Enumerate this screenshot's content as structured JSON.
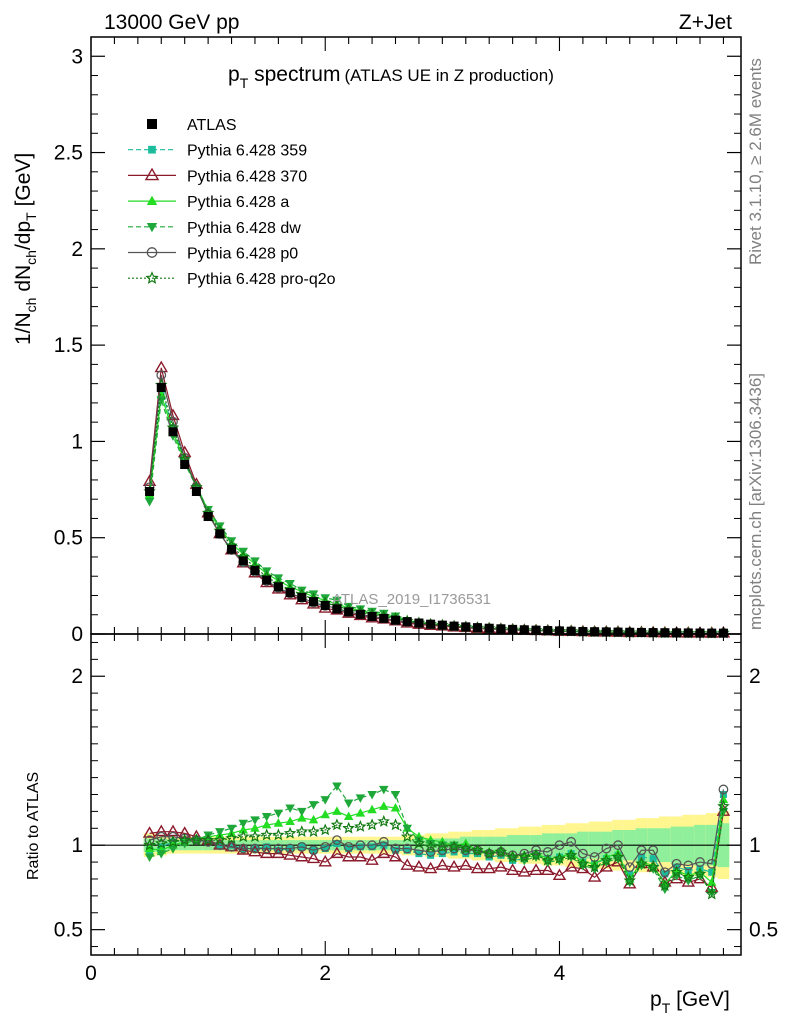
{
  "header": {
    "left": "13000 GeV pp",
    "right": "Z+Jet",
    "title_main": "p",
    "title_sub": "T",
    "title_rest": " spectrum",
    "title_note": "(ATLAS UE in Z production)"
  },
  "side_labels": {
    "rivet": "Rivet 3.1.10, ≥ 2.6M events",
    "mcplots": "mcplots.cern.ch [arXiv:1306.3436]"
  },
  "watermark": "ATLAS_2019_I1736531",
  "axes": {
    "ylabel_main": "1/N",
    "ylabel_ch": "ch",
    "ylabel_dN": " dN",
    "ylabel_ch2": "ch",
    "ylabel_dp": "/dp",
    "ylabel_T": "T",
    "ylabel_unit": " [GeV]",
    "ratio_ylabel": "Ratio to ATLAS",
    "xlabel_p": "p",
    "xlabel_T": "T",
    "xlabel_unit": " [GeV]"
  },
  "legend": [
    {
      "label": "ATLAS",
      "color": "#000000",
      "marker": "square"
    },
    {
      "label": "Pythia 6.428 359",
      "color": "#1abc9c",
      "marker": "small-square",
      "dash": "5,3"
    },
    {
      "label": "Pythia 6.428 370",
      "color": "#8b1a2b",
      "marker": "open-triangle"
    },
    {
      "label": "Pythia 6.428 a",
      "color": "#22dd22",
      "marker": "triangle"
    },
    {
      "label": "Pythia 6.428 dw",
      "color": "#1fa83a",
      "marker": "triangle-down",
      "dash": "5,3"
    },
    {
      "label": "Pythia 6.428 p0",
      "color": "#555555",
      "marker": "open-circle"
    },
    {
      "label": "Pythia 6.428 pro-q2o",
      "color": "#127a12",
      "marker": "open-star",
      "dash": "2,2"
    }
  ],
  "chart_data": {
    "type": "line",
    "x": [
      0.5,
      0.6,
      0.7,
      0.8,
      0.9,
      1.0,
      1.1,
      1.2,
      1.3,
      1.4,
      1.5,
      1.6,
      1.7,
      1.8,
      1.9,
      2.0,
      2.1,
      2.2,
      2.3,
      2.4,
      2.5,
      2.6,
      2.7,
      2.8,
      2.9,
      3.0,
      3.1,
      3.2,
      3.3,
      3.4,
      3.5,
      3.6,
      3.7,
      3.8,
      3.9,
      4.0,
      4.1,
      4.2,
      4.3,
      4.4,
      4.5,
      4.6,
      4.7,
      4.8,
      4.9,
      5.0,
      5.1,
      5.2,
      5.3,
      5.4
    ],
    "atlas": [
      0.74,
      1.28,
      1.05,
      0.88,
      0.74,
      0.61,
      0.52,
      0.44,
      0.38,
      0.33,
      0.28,
      0.245,
      0.215,
      0.19,
      0.168,
      0.148,
      0.13,
      0.115,
      0.102,
      0.091,
      0.081,
      0.072,
      0.064,
      0.057,
      0.051,
      0.046,
      0.041,
      0.037,
      0.033,
      0.03,
      0.027,
      0.024,
      0.022,
      0.02,
      0.018,
      0.016,
      0.0145,
      0.013,
      0.012,
      0.011,
      0.01,
      0.009,
      0.0082,
      0.0075,
      0.0068,
      0.0062,
      0.0056,
      0.0051,
      0.0047,
      0.0043
    ],
    "mc_ratio_level": 0.5,
    "ylim": [
      0,
      3.1
    ],
    "xlim": [
      0,
      5.55
    ],
    "yticks": [
      0,
      0.5,
      1,
      1.5,
      2,
      2.5,
      3
    ],
    "xticks": [
      0,
      2,
      4
    ],
    "ratio": {
      "ylim": [
        0.35,
        2.25
      ],
      "yticks": [
        0.5,
        1,
        2
      ],
      "series": [
        {
          "name": "Pythia 6.428 359",
          "values": [
            0.97,
            0.99,
            1.02,
            1.03,
            1.03,
            1.03,
            1.0,
            1.0,
            0.98,
            0.98,
            0.99,
            0.97,
            0.98,
            0.99,
            0.97,
            0.98,
            1.01,
            0.98,
            0.99,
            0.99,
            1.0,
            0.97,
            0.97,
            0.95,
            0.94,
            0.95,
            0.96,
            0.95,
            0.95,
            0.93,
            0.94,
            0.91,
            0.92,
            0.94,
            0.92,
            0.93,
            0.95,
            0.9,
            0.89,
            0.92,
            0.94,
            0.83,
            0.93,
            0.92,
            0.83,
            0.87,
            0.85,
            0.86,
            0.84,
            1.3
          ]
        },
        {
          "name": "Pythia 6.428 370",
          "values": [
            1.07,
            1.08,
            1.08,
            1.07,
            1.05,
            1.03,
            1.0,
            0.99,
            0.97,
            0.96,
            0.95,
            0.95,
            0.94,
            0.93,
            0.92,
            0.9,
            0.95,
            0.93,
            0.93,
            0.91,
            0.95,
            0.93,
            0.88,
            0.87,
            0.86,
            0.88,
            0.87,
            0.88,
            0.86,
            0.86,
            0.87,
            0.85,
            0.84,
            0.85,
            0.85,
            0.82,
            0.87,
            0.86,
            0.81,
            0.87,
            0.9,
            0.77,
            0.89,
            0.87,
            0.78,
            0.8,
            0.78,
            0.8,
            0.75,
            1.2
          ]
        },
        {
          "name": "Pythia 6.428 a",
          "values": [
            0.98,
            0.97,
            1.0,
            1.02,
            1.04,
            1.05,
            1.06,
            1.07,
            1.09,
            1.1,
            1.12,
            1.13,
            1.14,
            1.16,
            1.15,
            1.18,
            1.2,
            1.17,
            1.19,
            1.21,
            1.23,
            1.22,
            1.1,
            1.05,
            1.03,
            1.02,
            1.0,
            1.01,
            0.97,
            0.96,
            0.97,
            0.94,
            0.94,
            0.95,
            0.92,
            0.93,
            0.95,
            0.9,
            0.89,
            0.93,
            0.95,
            0.8,
            0.9,
            0.88,
            0.77,
            0.85,
            0.82,
            0.84,
            0.78,
            1.27
          ]
        },
        {
          "name": "Pythia 6.428 dw",
          "values": [
            0.93,
            0.95,
            0.98,
            1.01,
            1.03,
            1.06,
            1.08,
            1.1,
            1.13,
            1.15,
            1.17,
            1.19,
            1.22,
            1.2,
            1.24,
            1.27,
            1.35,
            1.25,
            1.28,
            1.3,
            1.33,
            1.3,
            1.1,
            1.03,
            1.01,
            1.0,
            1.0,
            0.98,
            0.96,
            0.95,
            0.95,
            0.92,
            0.91,
            0.93,
            0.9,
            0.91,
            0.93,
            0.88,
            0.86,
            0.9,
            0.92,
            0.78,
            0.88,
            0.86,
            0.74,
            0.82,
            0.79,
            0.82,
            0.72,
            1.2
          ]
        },
        {
          "name": "Pythia 6.428 p0",
          "values": [
            1.03,
            1.05,
            1.05,
            1.04,
            1.03,
            1.02,
            1.0,
            0.99,
            0.98,
            0.98,
            0.98,
            0.98,
            0.98,
            0.99,
            0.97,
            0.99,
            1.03,
            0.99,
            1.0,
            1.0,
            1.02,
            0.98,
            0.98,
            0.97,
            0.96,
            0.97,
            0.98,
            0.97,
            0.97,
            0.95,
            0.96,
            0.94,
            0.95,
            0.97,
            0.96,
            1.0,
            1.02,
            0.95,
            0.93,
            0.98,
            1.0,
            0.87,
            0.97,
            0.97,
            0.84,
            0.89,
            0.88,
            0.9,
            0.89,
            1.33
          ]
        },
        {
          "name": "Pythia 6.428 pro-q2o",
          "values": [
            1.0,
            1.01,
            1.02,
            1.03,
            1.03,
            1.03,
            1.03,
            1.04,
            1.05,
            1.05,
            1.06,
            1.06,
            1.07,
            1.08,
            1.08,
            1.09,
            1.12,
            1.1,
            1.11,
            1.12,
            1.14,
            1.12,
            1.05,
            1.01,
            0.99,
            0.99,
            0.99,
            0.98,
            0.97,
            0.95,
            0.96,
            0.93,
            0.93,
            0.94,
            0.91,
            0.92,
            0.94,
            0.89,
            0.87,
            0.91,
            0.93,
            0.79,
            0.89,
            0.87,
            0.76,
            0.84,
            0.81,
            0.83,
            0.71,
            1.23
          ]
        }
      ],
      "band_inner": [
        0.04,
        0.04,
        0.03,
        0.03,
        0.03,
        0.03,
        0.03,
        0.03,
        0.03,
        0.03,
        0.03,
        0.03,
        0.03,
        0.03,
        0.03,
        0.03,
        0.03,
        0.03,
        0.03,
        0.03,
        0.03,
        0.03,
        0.03,
        0.04,
        0.04,
        0.04,
        0.04,
        0.05,
        0.05,
        0.05,
        0.05,
        0.06,
        0.06,
        0.06,
        0.07,
        0.07,
        0.07,
        0.08,
        0.08,
        0.08,
        0.09,
        0.09,
        0.1,
        0.1,
        0.1,
        0.11,
        0.11,
        0.12,
        0.12,
        0.13
      ],
      "band_outer": [
        0.07,
        0.06,
        0.05,
        0.05,
        0.05,
        0.05,
        0.05,
        0.05,
        0.05,
        0.05,
        0.05,
        0.05,
        0.05,
        0.05,
        0.05,
        0.05,
        0.05,
        0.05,
        0.05,
        0.05,
        0.05,
        0.05,
        0.06,
        0.06,
        0.07,
        0.07,
        0.08,
        0.08,
        0.09,
        0.09,
        0.1,
        0.1,
        0.11,
        0.11,
        0.12,
        0.12,
        0.13,
        0.13,
        0.14,
        0.14,
        0.15,
        0.15,
        0.16,
        0.16,
        0.17,
        0.17,
        0.18,
        0.18,
        0.19,
        0.2
      ]
    }
  }
}
